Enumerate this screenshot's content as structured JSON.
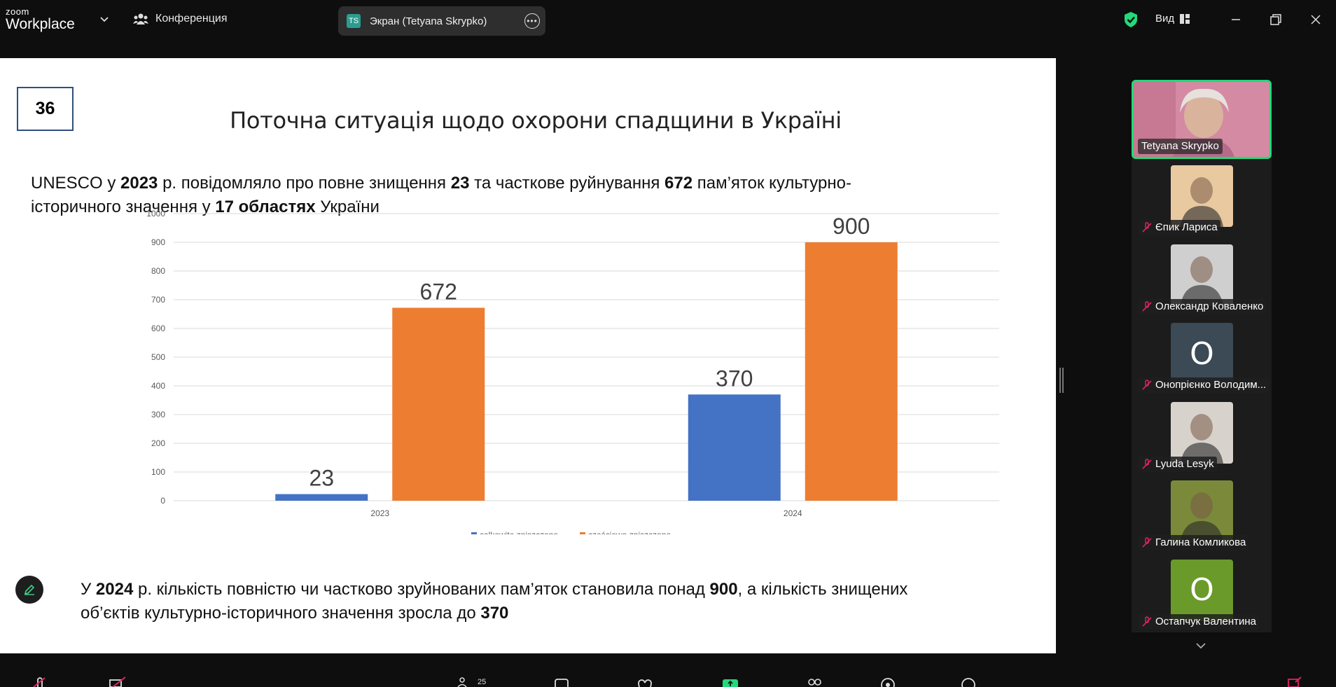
{
  "app": {
    "logo_top": "zoom",
    "logo_bottom": "Workplace",
    "conference_label": "Конференция",
    "screen_share_label": "Экран (Tetyana Skrypko)",
    "screen_share_initials": "TS",
    "view_label": "Вид",
    "participant_count": "25"
  },
  "slide": {
    "number": "36",
    "title": "Поточна ситуація щодо охорони спадщини в Україні",
    "intro": [
      {
        "t": "UNESCO у ",
        "b": false
      },
      {
        "t": "2023",
        "b": true
      },
      {
        "t": " р. повідомляло про повне знищення ",
        "b": false
      },
      {
        "t": "23",
        "b": true
      },
      {
        "t": " та часткове руйнування ",
        "b": false
      },
      {
        "t": "672",
        "b": true
      },
      {
        "t": " пам’яток культурно-історичного значення у ",
        "b": false
      },
      {
        "t": "17 областях",
        "b": true
      },
      {
        "t": " України",
        "b": false
      }
    ],
    "bottom": [
      {
        "t": "У ",
        "b": false
      },
      {
        "t": "2024",
        "b": true
      },
      {
        "t": " р. кількість повністю  чи частково зруйнованих пам’яток становила понад ",
        "b": false
      },
      {
        "t": "900",
        "b": true
      },
      {
        "t": ", а кількість знищених об’єктів культурно-історичного значення зросла до ",
        "b": false
      },
      {
        "t": "370",
        "b": true
      }
    ]
  },
  "chart_data": {
    "type": "bar",
    "categories": [
      "2023",
      "2024"
    ],
    "series": [
      {
        "name": "całkowite zniszczono",
        "values": [
          23,
          370
        ],
        "color": "#4472c4"
      },
      {
        "name": "częściowo zniszczono",
        "values": [
          672,
          900
        ],
        "color": "#ed7d31"
      }
    ],
    "ylim": [
      0,
      1000
    ],
    "yticks": [
      0,
      100,
      200,
      300,
      400,
      500,
      600,
      700,
      800,
      900,
      1000
    ],
    "grid": true,
    "legend": "bottom",
    "data_labels": true
  },
  "participants": {
    "active": {
      "name": "Tetyana Skrypko"
    },
    "list": [
      {
        "name": "Єпик Лариса",
        "kind": "photo",
        "color": "#e8c9a0"
      },
      {
        "name": "Олександр Коваленко",
        "kind": "photo",
        "color": "#cfcfcf"
      },
      {
        "name": "Онопрієнко Володим...",
        "kind": "letter",
        "letter": "О",
        "color": "#3b4a55"
      },
      {
        "name": "Lyuda Lesyk",
        "kind": "photo",
        "color": "#d8d2cc"
      },
      {
        "name": "Галина Комликова",
        "kind": "photo",
        "color": "#7a8a3a"
      },
      {
        "name": "Остапчук Валентина",
        "kind": "letter",
        "letter": "О",
        "color": "#6a9a2a"
      }
    ]
  },
  "colors": {
    "accent_green": "#23d97a",
    "bar_blue": "#4472c4",
    "bar_orange": "#ed7d31"
  }
}
